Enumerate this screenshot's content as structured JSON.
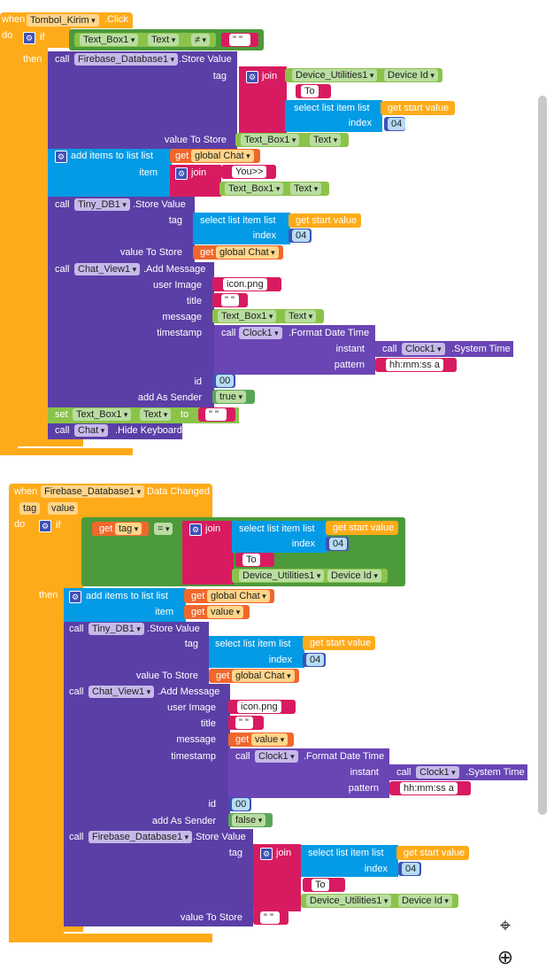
{
  "blockA": {
    "when": "when",
    "component": "Tombol_Kirim",
    "event": ".Click",
    "do": "do",
    "if": "if",
    "then": "then",
    "cond_comp": "Text_Box1",
    "cond_prop": "Text",
    "neq": "≠",
    "empty": "\" \"",
    "fb_call": "call",
    "fb_comp": "Firebase_Database1",
    "fb_method": ".Store Value",
    "tag": "tag",
    "join": "join",
    "du_comp": "Device_Utilities1",
    "du_prop": "Device Id",
    "to_str": "To",
    "select_item": "select list item  list",
    "get_start": "get start value",
    "index": "index",
    "num04": "04",
    "value_to_store": "value To Store",
    "tb_comp": "Text_Box1",
    "tb_prop": "Text",
    "add_items": "add items to list  list",
    "get": "get",
    "global_chat": "global Chat",
    "item": "item",
    "you_str": "You>>",
    "tdb_comp": "Tiny_DB1",
    "tdb_method": ".Store Value",
    "cv_comp": "Chat_View1",
    "cv_method": ".Add Message",
    "user_image": "user Image",
    "icon_str": "icon.png",
    "title": "title",
    "message": "message",
    "timestamp": "timestamp",
    "clock_comp": "Clock1",
    "fmt_method": ".Format Date Time",
    "instant": "instant",
    "sys_time": ".System Time",
    "pattern": "pattern",
    "pattern_str": "hh:mm:ss a",
    "id": "id",
    "num00": "00",
    "add_as_sender": "add As Sender",
    "true_v": "true",
    "set": "set",
    "to": "to",
    "chat_comp": "Chat",
    "hide_kb": ".Hide Keyboard"
  },
  "blockB": {
    "when": "when",
    "component": "Firebase_Database1",
    "event": "Data Changed",
    "param_tag": "tag",
    "param_value": "value",
    "do": "do",
    "if": "if",
    "then": "then",
    "get": "get",
    "tag_var": "tag",
    "eq": "=",
    "join": "join",
    "select_item": "select list item  list",
    "get_start": "get start value",
    "index": "index",
    "num04": "04",
    "to_str": "To",
    "du_comp": "Device_Utilities1",
    "du_prop": "Device Id",
    "add_items": "add items to list  list",
    "global_chat": "global Chat",
    "item": "item",
    "value_var": "value",
    "call": "call",
    "tdb_comp": "Tiny_DB1",
    "tdb_method": ".Store Value",
    "tag": "tag",
    "value_to_store": "value To Store",
    "cv_comp": "Chat_View1",
    "cv_method": ".Add Message",
    "user_image": "user Image",
    "icon_str": "icon.png",
    "title": "title",
    "message": "message",
    "timestamp": "timestamp",
    "clock_comp": "Clock1",
    "fmt_method": ".Format Date Time",
    "instant": "instant",
    "sys_time": ".System Time",
    "pattern": "pattern",
    "pattern_str": "hh:mm:ss a",
    "id": "id",
    "num00": "00",
    "add_as_sender": "add As Sender",
    "false_v": "false",
    "fb_comp": "Firebase_Database1",
    "fb_method": ".Store Value"
  },
  "controls": {
    "center_icon": "target-icon",
    "zoom_icon": "zoom-in-icon"
  }
}
